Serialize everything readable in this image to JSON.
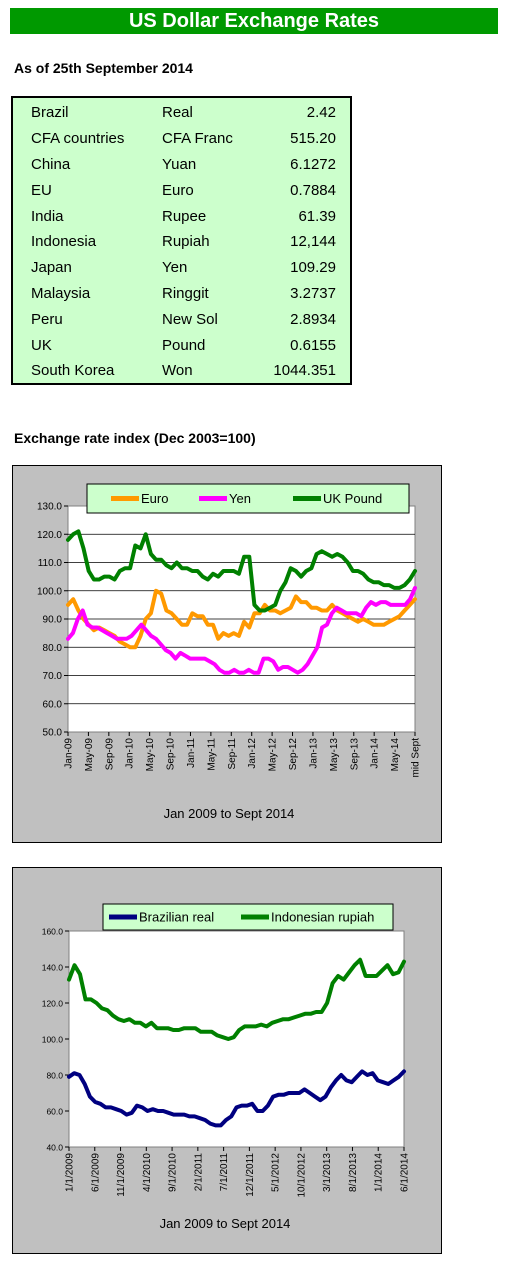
{
  "header": {
    "title": "US Dollar Exchange Rates",
    "as_of": "As of 25th September 2014"
  },
  "rates": [
    {
      "country": "Brazil",
      "currency": "Real",
      "value": "2.42"
    },
    {
      "country": "CFA countries",
      "currency": "CFA Franc",
      "value": "515.20"
    },
    {
      "country": "China",
      "currency": "Yuan",
      "value": "6.1272"
    },
    {
      "country": "EU",
      "currency": "Euro",
      "value": "0.7884"
    },
    {
      "country": "India",
      "currency": "Rupee",
      "value": "61.39"
    },
    {
      "country": "Indonesia",
      "currency": "Rupiah",
      "value": "12,144"
    },
    {
      "country": "Japan",
      "currency": "Yen",
      "value": "109.29"
    },
    {
      "country": "Malaysia",
      "currency": "Ringgit",
      "value": "3.2737"
    },
    {
      "country": "Peru",
      "currency": "New Sol",
      "value": "2.8934"
    },
    {
      "country": "UK",
      "currency": "Pound",
      "value": "0.6155"
    },
    {
      "country": "South Korea",
      "currency": "Won",
      "value": "1044.351"
    }
  ],
  "section_heading": "Exchange rate index (Dec 2003=100)",
  "colors": {
    "banner": "#009900",
    "table_bg": "#ccffcc",
    "euro": "#ff9900",
    "yen": "#ff00ff",
    "pound": "#008000",
    "real": "#000080",
    "rupiah": "#008000",
    "chart_bg": "#c0c0c0",
    "plot_bg": "#ffffff"
  },
  "chart_data": [
    {
      "type": "line",
      "xlabel": "Jan 2009 to Sept 2014",
      "ylim": [
        50,
        130
      ],
      "yticks": [
        "50.0",
        "60.0",
        "70.0",
        "80.0",
        "90.0",
        "100.0",
        "110.0",
        "120.0",
        "130.0"
      ],
      "xticks": [
        "Jan-09",
        "May-09",
        "Sep-09",
        "Jan-10",
        "May-10",
        "Sep-10",
        "Jan-11",
        "May-11",
        "Sep-11",
        "Jan-12",
        "May-12",
        "Sep-12",
        "Jan-13",
        "May-13",
        "Sep-13",
        "Jan-14",
        "May-14",
        "mid Sept"
      ],
      "legend_position": "top",
      "grid": true,
      "series": [
        {
          "name": "Euro",
          "values": [
            95,
            97,
            93,
            90,
            88,
            86,
            87,
            86,
            85,
            84,
            82,
            81,
            80,
            80,
            84,
            90,
            92,
            100,
            99,
            93,
            92,
            90,
            88,
            88,
            92,
            91,
            91,
            88,
            88,
            83,
            85,
            84,
            85,
            84,
            89,
            87,
            92,
            92,
            95,
            93,
            93,
            92,
            93,
            94,
            98,
            96,
            96,
            94,
            94,
            93,
            93,
            95,
            93,
            92,
            91,
            90,
            89,
            90,
            89,
            88,
            88,
            88,
            89,
            90,
            91,
            93,
            95,
            97
          ]
        },
        {
          "name": "Yen",
          "values": [
            83,
            85,
            90,
            93,
            88,
            87,
            87,
            86,
            85,
            84,
            83,
            83,
            83,
            84,
            86,
            88,
            86,
            84,
            83,
            81,
            79,
            78,
            76,
            78,
            77,
            76,
            76,
            76,
            76,
            75,
            74,
            72,
            71,
            71,
            72,
            71,
            71,
            72,
            71,
            71,
            76,
            76,
            75,
            72,
            73,
            73,
            72,
            71,
            72,
            74,
            77,
            80,
            87,
            88,
            92,
            94,
            93,
            92,
            92,
            92,
            91,
            94,
            96,
            95,
            96,
            96,
            95,
            95,
            95,
            95,
            97,
            101
          ]
        },
        {
          "name": "UK Pound",
          "values": [
            118,
            120,
            121,
            115,
            107,
            104,
            104,
            105,
            105,
            104,
            107,
            108,
            108,
            116,
            115,
            120,
            113,
            111,
            111,
            109,
            108,
            110,
            108,
            108,
            107,
            107,
            105,
            104,
            106,
            105,
            107,
            107,
            107,
            106,
            112,
            112,
            95,
            93,
            93,
            94,
            95,
            100,
            103,
            108,
            107,
            105,
            107,
            108,
            113,
            114,
            113,
            112,
            113,
            112,
            110,
            107,
            107,
            106,
            104,
            103,
            103,
            102,
            102,
            101,
            101,
            102,
            104,
            107
          ]
        },
        {
          "name": "",
          "values": []
        }
      ]
    },
    {
      "type": "line",
      "xlabel": "Jan 2009 to Sept 2014",
      "ylim": [
        40,
        160
      ],
      "yticks": [
        "40.0",
        "60.0",
        "80.0",
        "100.0",
        "120.0",
        "140.0",
        "160.0"
      ],
      "xticks": [
        "1/1/2009",
        "6/1/2009",
        "11/1/2009",
        "4/1/2010",
        "9/1/2010",
        "2/1/2011",
        "7/1/2011",
        "12/1/2011",
        "5/1/2012",
        "10/1/2012",
        "3/1/2013",
        "8/1/2013",
        "1/1/2014",
        "6/1/2014"
      ],
      "legend_position": "top",
      "grid": false,
      "series": [
        {
          "name": "Brazilian real",
          "values": [
            79,
            81,
            80,
            75,
            68,
            65,
            64,
            62,
            62,
            61,
            60,
            58,
            59,
            63,
            62,
            60,
            61,
            60,
            60,
            59,
            58,
            58,
            58,
            57,
            57,
            56,
            55,
            53,
            52,
            52,
            55,
            57,
            62,
            63,
            63,
            64,
            60,
            60,
            63,
            68,
            69,
            69,
            70,
            70,
            70,
            72,
            70,
            68,
            66,
            68,
            73,
            77,
            80,
            77,
            76,
            79,
            82,
            80,
            81,
            77,
            76,
            75,
            77,
            79,
            82
          ]
        },
        {
          "name": "Indonesian rupiah",
          "values": [
            133,
            141,
            136,
            122,
            122,
            120,
            117,
            116,
            113,
            111,
            110,
            111,
            109,
            109,
            107,
            109,
            106,
            106,
            106,
            105,
            105,
            106,
            106,
            106,
            104,
            104,
            104,
            102,
            101,
            100,
            101,
            105,
            107,
            107,
            107,
            108,
            107,
            109,
            110,
            111,
            111,
            112,
            113,
            114,
            114,
            115,
            115,
            120,
            131,
            135,
            133,
            137,
            141,
            144,
            135,
            135,
            135,
            138,
            141,
            136,
            137,
            143
          ]
        }
      ]
    }
  ]
}
